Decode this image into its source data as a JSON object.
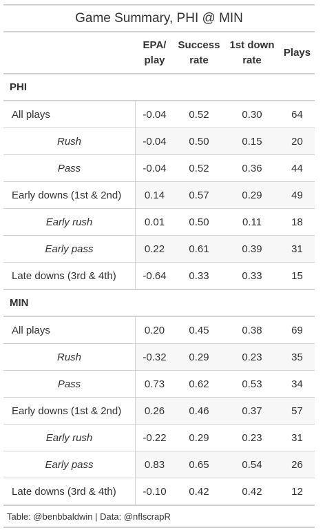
{
  "title": "Game Summary, PHI @ MIN",
  "columns": {
    "epa": [
      "EPA/",
      "play"
    ],
    "success": [
      "Success",
      "rate"
    ],
    "first_down": [
      "1st down",
      "rate"
    ],
    "plays": [
      "Plays"
    ]
  },
  "groups": [
    {
      "name": "PHI",
      "rows": [
        {
          "label": "All plays",
          "sub": false,
          "epa": "-0.04",
          "success": "0.52",
          "first_down": "0.30",
          "plays": "64"
        },
        {
          "label": "Rush",
          "sub": true,
          "epa": "-0.04",
          "success": "0.50",
          "first_down": "0.15",
          "plays": "20"
        },
        {
          "label": "Pass",
          "sub": true,
          "epa": "-0.04",
          "success": "0.52",
          "first_down": "0.36",
          "plays": "44"
        },
        {
          "label": "Early downs (1st & 2nd)",
          "sub": false,
          "epa": "0.14",
          "success": "0.57",
          "first_down": "0.29",
          "plays": "49"
        },
        {
          "label": "Early rush",
          "sub": true,
          "epa": "0.01",
          "success": "0.50",
          "first_down": "0.11",
          "plays": "18"
        },
        {
          "label": "Early pass",
          "sub": true,
          "epa": "0.22",
          "success": "0.61",
          "first_down": "0.39",
          "plays": "31"
        },
        {
          "label": "Late downs (3rd & 4th)",
          "sub": false,
          "epa": "-0.64",
          "success": "0.33",
          "first_down": "0.33",
          "plays": "15"
        }
      ]
    },
    {
      "name": "MIN",
      "rows": [
        {
          "label": "All plays",
          "sub": false,
          "epa": "0.20",
          "success": "0.45",
          "first_down": "0.38",
          "plays": "69"
        },
        {
          "label": "Rush",
          "sub": true,
          "epa": "-0.32",
          "success": "0.29",
          "first_down": "0.23",
          "plays": "35"
        },
        {
          "label": "Pass",
          "sub": true,
          "epa": "0.73",
          "success": "0.62",
          "first_down": "0.53",
          "plays": "34"
        },
        {
          "label": "Early downs (1st & 2nd)",
          "sub": false,
          "epa": "0.26",
          "success": "0.46",
          "first_down": "0.37",
          "plays": "57"
        },
        {
          "label": "Early rush",
          "sub": true,
          "epa": "-0.22",
          "success": "0.29",
          "first_down": "0.23",
          "plays": "31"
        },
        {
          "label": "Early pass",
          "sub": true,
          "epa": "0.83",
          "success": "0.65",
          "first_down": "0.54",
          "plays": "26"
        },
        {
          "label": "Late downs (3rd & 4th)",
          "sub": false,
          "epa": "-0.10",
          "success": "0.42",
          "first_down": "0.42",
          "plays": "12"
        }
      ]
    }
  ],
  "footer": "Table: @benbbaldwin | Data: @nflscrapR",
  "colors": {
    "border": "#d3d3d3",
    "stripe": "#f7f7f7",
    "text": "#333333"
  }
}
